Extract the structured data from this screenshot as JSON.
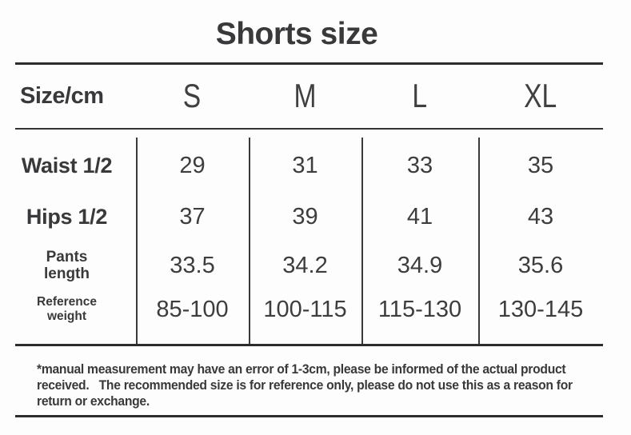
{
  "title": "Shorts size",
  "chart_data": {
    "type": "table",
    "title": "Shorts size",
    "columns": [
      "Size/cm",
      "S",
      "M",
      "L",
      "XL"
    ],
    "rows": [
      {
        "label": "Waist 1/2",
        "values": [
          "29",
          "31",
          "33",
          "35"
        ]
      },
      {
        "label": "Hips 1/2",
        "values": [
          "37",
          "39",
          "41",
          "43"
        ]
      },
      {
        "label": "Pants length",
        "label_lines": [
          "Pants",
          "length"
        ],
        "values": [
          "33.5",
          "34.2",
          "34.9",
          "35.6"
        ]
      },
      {
        "label": "Reference weight",
        "label_lines": [
          "Reference",
          "weight"
        ],
        "values": [
          "85-100",
          "100-115",
          "115-130",
          "130-145"
        ]
      }
    ]
  },
  "footer": {
    "lines": [
      "*manual measurement may have an error of 1-3cm, please be informed of the actual product",
      "received.   The recommended size is for reference only, please do not use this as a reason for",
      "return or exchange."
    ]
  },
  "colors": {
    "text": "#3a3a3c",
    "line": "#2c2c2e",
    "background": "#fdfdfd"
  }
}
